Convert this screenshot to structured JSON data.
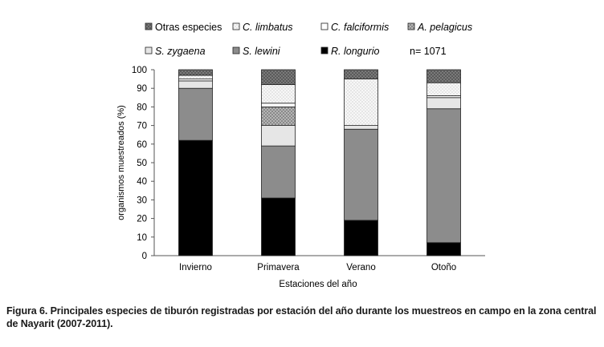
{
  "chart_data": {
    "type": "bar",
    "stacked": true,
    "categories": [
      "Invierno",
      "Primavera",
      "Verano",
      "Otoño"
    ],
    "xlabel": "Estaciones del año",
    "ylabel": "organismos muestreados (%)",
    "ylim": [
      0,
      100
    ],
    "yticks": [
      0,
      10,
      20,
      30,
      40,
      50,
      60,
      70,
      80,
      90,
      100
    ],
    "grid": false,
    "sample_size": "n= 1071",
    "series": [
      {
        "name": "R. longurio",
        "color": "#000000",
        "pattern": "solid",
        "values": [
          62,
          31,
          19,
          7
        ]
      },
      {
        "name": "S. lewini",
        "color": "#8c8c8c",
        "pattern": "solid",
        "values": [
          28,
          28,
          49,
          72
        ]
      },
      {
        "name": "S. zygaena",
        "color": "#e6e6e6",
        "pattern": "solid",
        "values": [
          4,
          11,
          2,
          6
        ]
      },
      {
        "name": "A. pelagicus",
        "color": "#a8a8a8",
        "pattern": "dots",
        "values": [
          0,
          10,
          0,
          0
        ]
      },
      {
        "name": "C. falciformis",
        "color": "#ffffff",
        "pattern": "solid",
        "values": [
          1,
          2,
          0,
          1
        ]
      },
      {
        "name": "C. limbatus",
        "color": "#f4f4f4",
        "pattern": "dots",
        "values": [
          2,
          10,
          25,
          7
        ]
      },
      {
        "name": "Otras especies",
        "color": "#777777",
        "pattern": "dots",
        "values": [
          3,
          8,
          5,
          7
        ]
      }
    ],
    "legend": {
      "row1": [
        "Otras especies",
        "C. limbatus",
        "C. falciformis",
        "A. pelagicus"
      ],
      "row2": [
        "S. zygaena",
        "S. lewini",
        "R. longurio"
      ]
    }
  },
  "caption": "Figura 6. Principales especies de tiburón registradas por estación del año durante los muestreos en campo en la zona central de Nayarit (2007-2011)."
}
